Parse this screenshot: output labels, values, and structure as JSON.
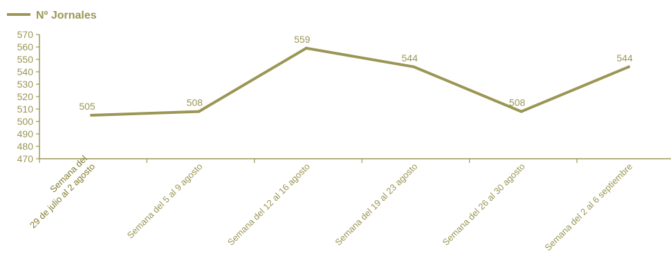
{
  "chart_data": {
    "type": "line",
    "categories": [
      [
        "Semana del",
        "29 de julio al 2 agosto"
      ],
      [
        "Semana del 5 al 9 agosto"
      ],
      [
        "Semana del 12 al 16 agosto"
      ],
      [
        "Semana del 19 al 23 agosto"
      ],
      [
        "Semana del 26 al 30 agosto"
      ],
      [
        "Semana del 2 al 6 septiembre"
      ]
    ],
    "series": [
      {
        "name": "Nº Jornales",
        "values": [
          505,
          508,
          559,
          544,
          508,
          544
        ],
        "color": "#9b9655"
      }
    ],
    "ylim": [
      470,
      570
    ],
    "yticks": [
      470,
      480,
      490,
      500,
      510,
      520,
      530,
      540,
      550,
      560,
      570
    ],
    "data_labels": true,
    "legend_position": "top-left",
    "grid": false,
    "colors": {
      "line": "#9b9655",
      "axis": "#9b9655",
      "text": "#9b9655",
      "first_category_text": "#807c2c"
    }
  }
}
